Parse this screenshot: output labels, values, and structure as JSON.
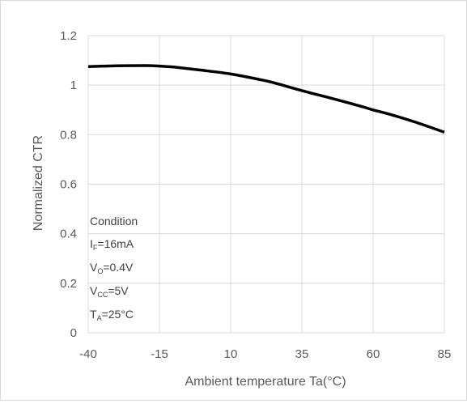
{
  "chart_data": {
    "type": "line",
    "title": "",
    "xlabel": "Ambient temperature Ta(°C)",
    "ylabel": "Normalized CTR",
    "xlim": [
      -40,
      85
    ],
    "ylim": [
      0,
      1.2
    ],
    "x_ticks": [
      -40,
      -15,
      10,
      35,
      60,
      85
    ],
    "x_tick_labels": [
      "-40",
      "-15",
      "10",
      "35",
      "60",
      "85"
    ],
    "y_ticks": [
      0,
      0.2,
      0.4,
      0.6,
      0.8,
      1.0,
      1.2
    ],
    "y_tick_labels": [
      "0",
      "0.2",
      "0.4",
      "0.6",
      "0.8",
      "1",
      "1.2"
    ],
    "grid": true,
    "series": [
      {
        "color": "#000000",
        "x": [
          -40,
          -30,
          -20,
          -15,
          -10,
          0,
          10,
          20,
          25,
          35,
          45,
          55,
          60,
          65,
          75,
          85
        ],
        "y": [
          1.075,
          1.078,
          1.079,
          1.077,
          1.073,
          1.06,
          1.045,
          1.023,
          1.01,
          0.978,
          0.948,
          0.917,
          0.9,
          0.885,
          0.85,
          0.81
        ]
      }
    ],
    "annotations": {
      "condition_title": "Condition",
      "lines": [
        {
          "main": "I",
          "sub": "F",
          "rest": "=16mA"
        },
        {
          "main": "V",
          "sub": "O",
          "rest": "=0.4V"
        },
        {
          "main": "V",
          "sub": "CC",
          "rest": "=5V"
        },
        {
          "main": "T",
          "sub": "A",
          "rest": "=25°C"
        }
      ]
    }
  }
}
